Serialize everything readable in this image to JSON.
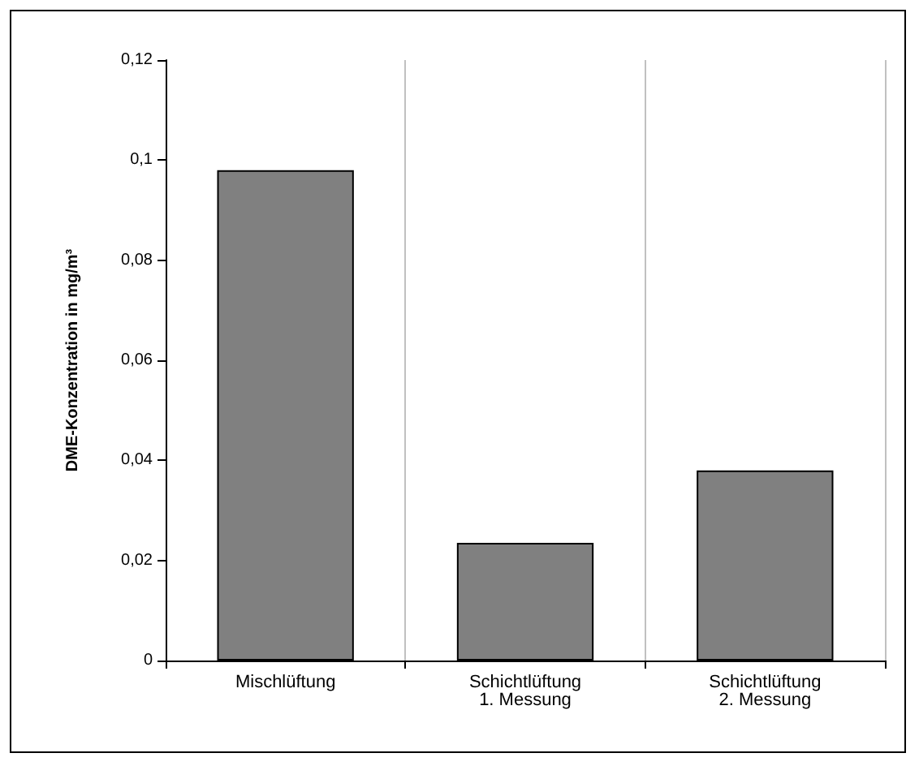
{
  "chart_data": {
    "type": "bar",
    "ylabel": "DME-Konzentration in mg/m³",
    "categories": [
      "Mischlüftung",
      "Schichtlüftung\n1. Messung",
      "Schichtlüftung\n2. Messung"
    ],
    "values": [
      0.098,
      0.0235,
      0.038
    ],
    "color": "#808080",
    "ylim": [
      0,
      0.12
    ],
    "yticks": [
      {
        "value": 0,
        "label": "0"
      },
      {
        "value": 0.02,
        "label": "0,02"
      },
      {
        "value": 0.04,
        "label": "0,04"
      },
      {
        "value": 0.06,
        "label": "0,06"
      },
      {
        "value": 0.08,
        "label": "0,08"
      },
      {
        "value": 0.1,
        "label": "0,1"
      },
      {
        "value": 0.12,
        "label": "0,12"
      }
    ],
    "grid": "x"
  }
}
